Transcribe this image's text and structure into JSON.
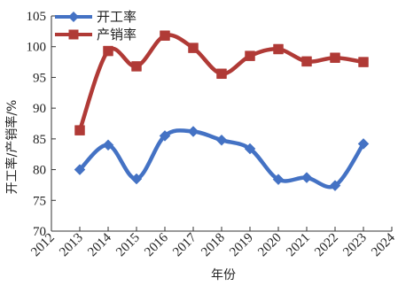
{
  "chart_data": {
    "type": "line",
    "xlabel": "年份",
    "ylabel": "开工率/产销率/%",
    "xlim": [
      2012,
      2024
    ],
    "ylim": [
      70,
      105
    ],
    "x_ticks": [
      2012,
      2013,
      2014,
      2015,
      2016,
      2017,
      2018,
      2019,
      2020,
      2021,
      2022,
      2023,
      2024
    ],
    "y_ticks": [
      70,
      75,
      80,
      85,
      90,
      95,
      100,
      105
    ],
    "grid": false,
    "legend_position": "top-left",
    "x": [
      2013,
      2014,
      2015,
      2016,
      2017,
      2018,
      2019,
      2020,
      2021,
      2022,
      2023
    ],
    "series": [
      {
        "name": "开工率",
        "color": "#4472C4",
        "marker": "diamond",
        "values": [
          80.0,
          84.0,
          78.5,
          85.5,
          86.2,
          84.8,
          83.4,
          78.4,
          78.7,
          77.4,
          84.2
        ]
      },
      {
        "name": "产销率",
        "color": "#B03A36",
        "marker": "square",
        "values": [
          86.4,
          99.3,
          96.8,
          101.8,
          99.8,
          95.6,
          98.5,
          99.6,
          97.6,
          98.2,
          97.5
        ]
      }
    ]
  }
}
